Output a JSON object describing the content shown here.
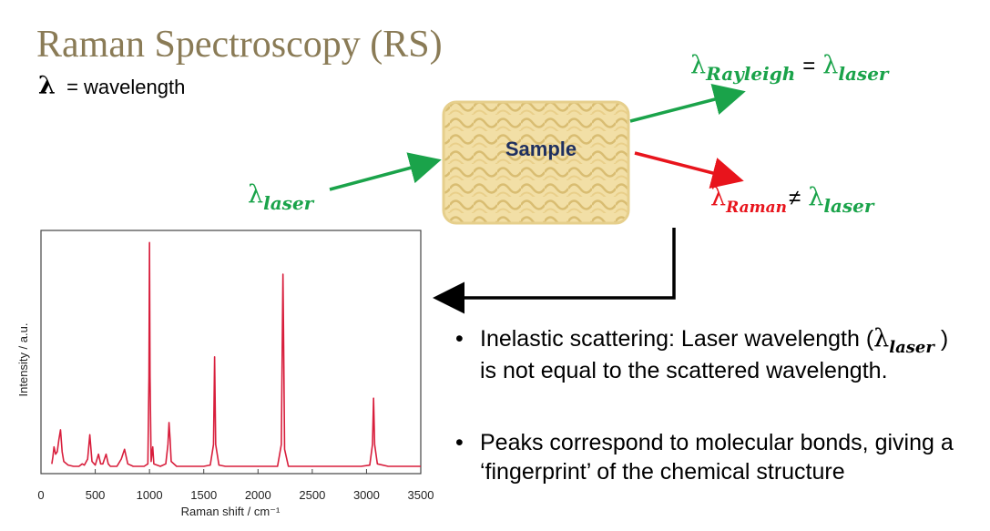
{
  "title": "Raman Spectroscopy (RS)",
  "legend": {
    "symbol": "λ",
    "text": "= wavelength"
  },
  "diagram": {
    "sample": "Sample",
    "incident": {
      "symbol": "λ",
      "subscript": "laser"
    },
    "rayleigh": {
      "symbol": "λ",
      "subscript": "Rayleigh",
      "relation": "=",
      "rhs_symbol": "λ",
      "rhs_subscript": "laser"
    },
    "raman": {
      "symbol": "λ",
      "subscript": "Raman",
      "relation": "≠",
      "rhs_symbol": "λ",
      "rhs_subscript": "laser"
    }
  },
  "bullets": [
    [
      "Inelastic scattering: Laser wavelength (",
      "λ",
      "laser",
      " ) is not equal to the scattered wavelength."
    ],
    [
      "Peaks correspond to molecular bonds, giving a ‘fingerprint’ of the chemical structure"
    ]
  ],
  "chart_data": {
    "type": "line",
    "x_label": "Raman shift / cm⁻¹",
    "y_label": "Intensity / a.u.",
    "x": [
      100,
      110,
      120,
      135,
      150,
      165,
      180,
      195,
      210,
      250,
      300,
      350,
      380,
      400,
      430,
      450,
      470,
      500,
      530,
      550,
      570,
      600,
      620,
      640,
      700,
      740,
      770,
      800,
      850,
      900,
      950,
      985,
      995,
      1000,
      1005,
      1015,
      1025,
      1030,
      1040,
      1100,
      1150,
      1170,
      1180,
      1190,
      1200,
      1250,
      1300,
      1400,
      1500,
      1560,
      1590,
      1600,
      1610,
      1640,
      1700,
      1800,
      1900,
      2000,
      2100,
      2180,
      2215,
      2225,
      2230,
      2235,
      2245,
      2280,
      2400,
      2600,
      2800,
      2950,
      3030,
      3055,
      3065,
      3075,
      3100,
      3200,
      3300,
      3500
    ],
    "series": [
      {
        "color": "#d81e3c",
        "values": [
          4,
          7,
          11,
          8,
          9,
          14,
          18,
          9,
          5,
          3.5,
          3,
          3,
          4,
          3.5,
          6,
          16,
          5,
          3.5,
          8,
          4,
          4,
          8,
          4,
          3,
          3,
          6,
          10,
          4,
          3,
          3,
          3,
          4,
          40,
          95,
          40,
          5,
          9,
          11,
          4,
          3,
          4,
          12,
          21,
          14,
          5,
          3,
          3,
          3,
          3,
          3.5,
          12,
          48,
          12,
          3.5,
          3,
          3,
          3,
          3,
          3,
          3,
          12,
          60,
          82,
          60,
          10,
          3,
          3,
          3,
          3,
          3,
          3.5,
          12,
          31,
          12,
          4,
          3,
          3,
          3
        ]
      }
    ],
    "xlim": [
      0,
      3500
    ],
    "xticks": [
      0,
      500,
      1000,
      1500,
      2000,
      2500,
      3000,
      3500
    ],
    "ylim": [
      0,
      100
    ]
  }
}
